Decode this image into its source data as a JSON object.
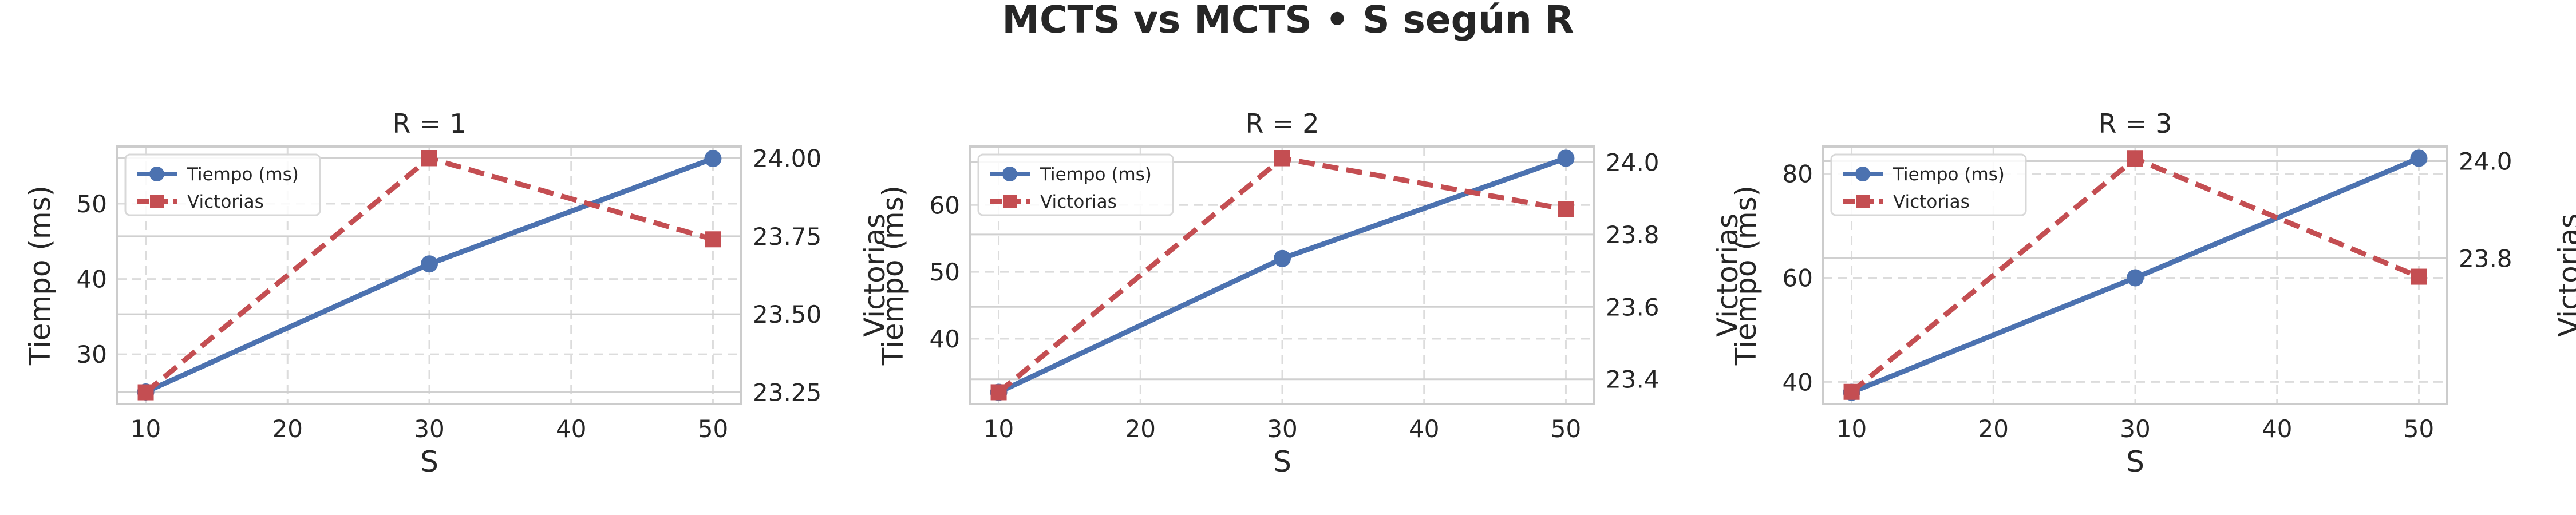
{
  "figure": {
    "title": "MCTS vs MCTS • S según R"
  },
  "chart_data": [
    {
      "type": "line",
      "title": "R = 1",
      "xlabel": "S",
      "ylabel": "Tiempo (ms)",
      "y2label": "Victorias",
      "x": [
        10,
        30,
        50
      ],
      "xticks": [
        10,
        20,
        30,
        40,
        50
      ],
      "xlim": [
        8,
        52
      ],
      "ylim": [
        23.4,
        57.6
      ],
      "yticks": [
        30,
        40,
        50
      ],
      "y2lim": [
        23.2125,
        24.0375
      ],
      "y2ticks": [
        "23.25",
        "23.50",
        "23.75",
        "24.00"
      ],
      "legend": "top-left",
      "grid": true,
      "series": [
        {
          "name": "Tiempo (ms)",
          "axis": "left",
          "values": [
            25,
            42,
            56
          ],
          "color": "#4c72b0",
          "style": "solid",
          "marker": "circle"
        },
        {
          "name": "Victorias",
          "axis": "right",
          "values": [
            23.25,
            24.0,
            23.74
          ],
          "color": "#c44e52",
          "style": "dashed",
          "marker": "square"
        }
      ]
    },
    {
      "type": "line",
      "title": "R = 2",
      "xlabel": "S",
      "ylabel": "Tiempo (ms)",
      "y2label": "Victorias",
      "x": [
        10,
        30,
        50
      ],
      "xticks": [
        10,
        20,
        30,
        40,
        50
      ],
      "xlim": [
        8,
        52
      ],
      "ylim": [
        30.25,
        68.75
      ],
      "yticks": [
        40,
        50,
        60
      ],
      "y2lim": [
        23.3315,
        24.0435
      ],
      "y2ticks": [
        "23.4",
        "23.6",
        "23.8",
        "24.0"
      ],
      "legend": "top-left",
      "grid": true,
      "series": [
        {
          "name": "Tiempo (ms)",
          "axis": "left",
          "values": [
            32,
            52,
            67
          ],
          "color": "#4c72b0",
          "style": "solid",
          "marker": "circle"
        },
        {
          "name": "Victorias",
          "axis": "right",
          "values": [
            23.364,
            24.011,
            23.87
          ],
          "color": "#c44e52",
          "style": "dashed",
          "marker": "square"
        }
      ]
    },
    {
      "type": "line",
      "title": "R = 3",
      "xlabel": "S",
      "ylabel": "Tiempo (ms)",
      "y2label": "Victorias",
      "x": [
        10,
        30,
        50
      ],
      "xticks": [
        10,
        20,
        30,
        40,
        50
      ],
      "xlim": [
        8,
        52
      ],
      "ylim": [
        35.75,
        85.25
      ],
      "yticks": [
        40,
        60,
        80
      ],
      "y2lim": [
        23.5,
        24.03
      ],
      "y2ticks": [
        "23.8",
        "24.0"
      ],
      "legend": "top-left",
      "grid": true,
      "series": [
        {
          "name": "Tiempo (ms)",
          "axis": "left",
          "values": [
            38,
            60,
            83
          ],
          "color": "#4c72b0",
          "style": "solid",
          "marker": "circle"
        },
        {
          "name": "Victorias",
          "axis": "right",
          "values": [
            23.525,
            24.005,
            23.762
          ],
          "color": "#c44e52",
          "style": "dashed",
          "marker": "square"
        }
      ]
    }
  ]
}
